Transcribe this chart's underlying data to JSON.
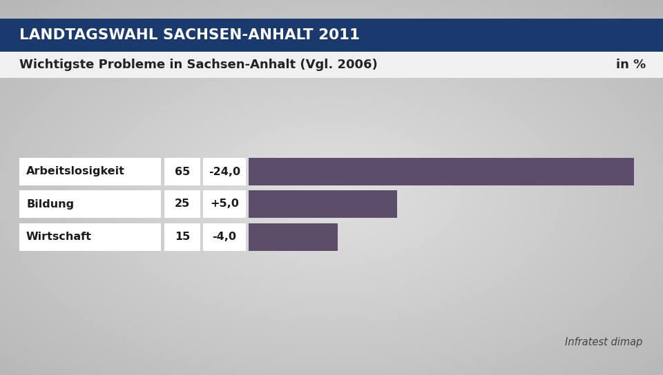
{
  "title_banner": "LANDTAGSWAHL SACHSEN-ANHALT 2011",
  "subtitle": "Wichtigste Probleme in Sachsen-Anhalt (Vgl. 2006)",
  "unit_label": "in %",
  "source": "Infratest dimap",
  "categories": [
    "Arbeitslosigkeit",
    "Bildung",
    "Wirtschaft"
  ],
  "values": [
    65,
    25,
    15
  ],
  "changes": [
    "-24,0",
    "+5,0",
    "-4,0"
  ],
  "bar_color": "#5c4d6b",
  "banner_color": "#1a3a6e",
  "banner_text_color": "#ffffff",
  "subtitle_bg_color": "#f2f2f2",
  "bg_color_center": "#dcdcdc",
  "bg_color_edge": "#b0b0b0",
  "label_box_color": "#ffffff",
  "figsize": [
    9.6,
    5.44
  ],
  "dpi": 100
}
